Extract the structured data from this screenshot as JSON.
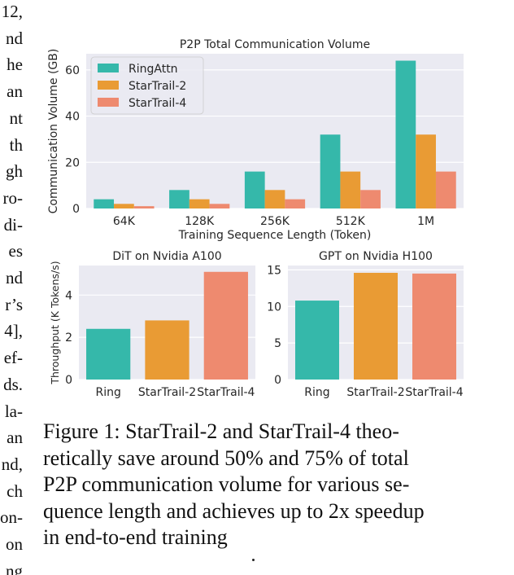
{
  "left_column_fragments": [
    "12,",
    "nd",
    "he",
    "an",
    "nt",
    "th",
    "gh",
    "ro-",
    "di-",
    "es",
    "nd",
    "r’s",
    "4],",
    "ef-",
    "ds.",
    "la-",
    "an",
    "nd,",
    "ch",
    "on-",
    "on",
    "ng"
  ],
  "figure": {
    "colors": {
      "ringattn": "#35b8aa",
      "startrail2": "#e99b34",
      "startrail4": "#ee8a6f",
      "panel_bg": "#eaeaf2",
      "grid": "#ffffff"
    }
  },
  "chart_data": [
    {
      "type": "bar",
      "title": "P2P Total Communication Volume",
      "xlabel": "Training Sequence Length (Token)",
      "ylabel": "Communication Volume (GB)",
      "categories": [
        "64K",
        "128K",
        "256K",
        "512K",
        "1M"
      ],
      "series": [
        {
          "name": "RingAttn",
          "values": [
            4,
            8,
            16,
            32,
            64
          ]
        },
        {
          "name": "StarTrail-2",
          "values": [
            2,
            4,
            8,
            16,
            32
          ]
        },
        {
          "name": "StarTrail-4",
          "values": [
            1,
            2,
            4,
            8,
            16
          ]
        }
      ],
      "ylim": [
        0,
        67
      ],
      "yticks": [
        0,
        20,
        40,
        60
      ],
      "grid": true,
      "legend": "top-left"
    },
    {
      "type": "bar",
      "title": "DiT on Nvidia A100",
      "xlabel": "",
      "ylabel": "Throughput (K Tokens/s)",
      "categories": [
        "Ring",
        "StarTrail-2",
        "StarTrail-4"
      ],
      "values": [
        2.4,
        2.8,
        5.1
      ],
      "ylim": [
        0,
        5.4
      ],
      "yticks": [
        0,
        2,
        4
      ],
      "grid": true
    },
    {
      "type": "bar",
      "title": "GPT on Nvidia H100",
      "xlabel": "",
      "ylabel": "",
      "categories": [
        "Ring",
        "StarTrail-2",
        "StarTrail-4"
      ],
      "values": [
        10.8,
        14.6,
        14.5
      ],
      "ylim": [
        0,
        15.6
      ],
      "yticks": [
        0,
        5,
        10,
        15
      ],
      "grid": true
    }
  ],
  "caption": {
    "lines": [
      "Figure 1: StarTrail-2 and StarTrail-4 theo-",
      "retically save around 50% and 75% of total",
      "P2P communication volume for various se-",
      "quence length and achieves up to 2x speedup",
      "in end-to-end training"
    ]
  }
}
